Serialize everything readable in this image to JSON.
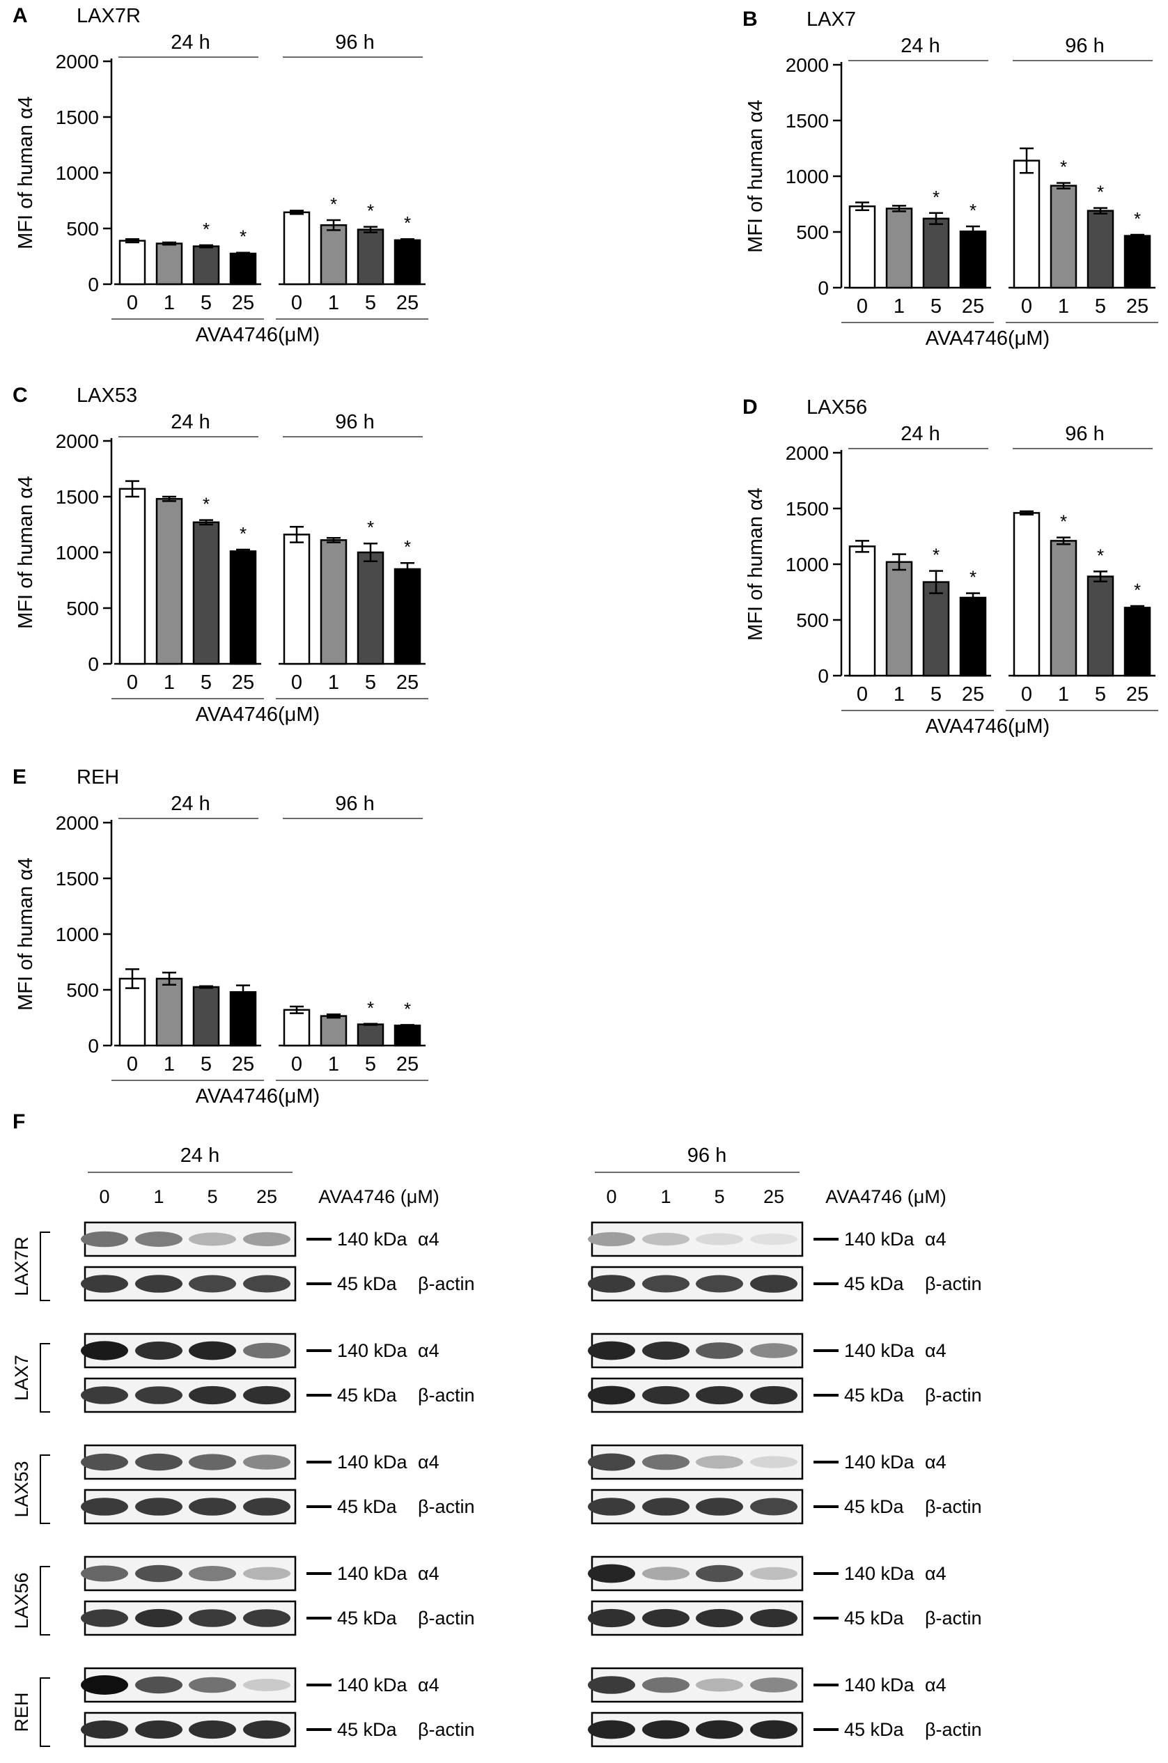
{
  "chart_data": [
    {
      "panel": "A",
      "title": "LAX7R",
      "type": "bar",
      "ylabel": "MFI of human α4",
      "xlabel": "AVA4746(μM)",
      "ylim": [
        0,
        2000
      ],
      "yticks": [
        0,
        500,
        1000,
        1500,
        2000
      ],
      "groups": [
        {
          "label": "24 h",
          "categories": [
            "0",
            "1",
            "5",
            "25"
          ],
          "values": [
            390,
            365,
            340,
            275
          ],
          "errors": [
            15,
            10,
            10,
            8
          ],
          "significant": [
            false,
            false,
            true,
            true
          ]
        },
        {
          "label": "96 h",
          "categories": [
            "0",
            "1",
            "5",
            "25"
          ],
          "values": [
            645,
            530,
            490,
            395
          ],
          "errors": [
            15,
            45,
            25,
            10
          ],
          "significant": [
            false,
            true,
            true,
            true
          ]
        }
      ]
    },
    {
      "panel": "B",
      "title": "LAX7",
      "type": "bar",
      "ylabel": "MFI of human α4",
      "xlabel": "AVA4746(μM)",
      "ylim": [
        0,
        2000
      ],
      "yticks": [
        0,
        500,
        1000,
        1500,
        2000
      ],
      "groups": [
        {
          "label": "24 h",
          "categories": [
            "0",
            "1",
            "5",
            "25"
          ],
          "values": [
            730,
            710,
            620,
            505
          ],
          "errors": [
            35,
            25,
            50,
            45
          ],
          "significant": [
            false,
            false,
            true,
            true
          ]
        },
        {
          "label": "96 h",
          "categories": [
            "0",
            "1",
            "5",
            "25"
          ],
          "values": [
            1140,
            915,
            690,
            465
          ],
          "errors": [
            110,
            25,
            25,
            10
          ],
          "significant": [
            false,
            true,
            true,
            true
          ]
        }
      ]
    },
    {
      "panel": "C",
      "title": "LAX53",
      "type": "bar",
      "ylabel": "MFI of human α4",
      "xlabel": "AVA4746(μM)",
      "ylim": [
        0,
        2000
      ],
      "yticks": [
        0,
        500,
        1000,
        1500,
        2000
      ],
      "groups": [
        {
          "label": "24 h",
          "categories": [
            "0",
            "1",
            "5",
            "25"
          ],
          "values": [
            1570,
            1480,
            1270,
            1010
          ],
          "errors": [
            70,
            20,
            20,
            15
          ],
          "significant": [
            false,
            false,
            true,
            true
          ]
        },
        {
          "label": "96 h",
          "categories": [
            "0",
            "1",
            "5",
            "25"
          ],
          "values": [
            1160,
            1110,
            1000,
            850
          ],
          "errors": [
            70,
            20,
            80,
            55
          ],
          "significant": [
            false,
            false,
            true,
            true
          ]
        }
      ]
    },
    {
      "panel": "D",
      "title": "LAX56",
      "type": "bar",
      "ylabel": "MFI of human α4",
      "xlabel": "AVA4746(μM)",
      "ylim": [
        0,
        2000
      ],
      "yticks": [
        0,
        500,
        1000,
        1500,
        2000
      ],
      "groups": [
        {
          "label": "24 h",
          "categories": [
            "0",
            "1",
            "5",
            "25"
          ],
          "values": [
            1160,
            1020,
            840,
            700
          ],
          "errors": [
            50,
            70,
            100,
            40
          ],
          "significant": [
            false,
            false,
            true,
            true
          ]
        },
        {
          "label": "96 h",
          "categories": [
            "0",
            "1",
            "5",
            "25"
          ],
          "values": [
            1460,
            1210,
            890,
            610
          ],
          "errors": [
            15,
            30,
            45,
            15
          ],
          "significant": [
            false,
            true,
            true,
            true
          ]
        }
      ]
    },
    {
      "panel": "E",
      "title": "REH",
      "type": "bar",
      "ylabel": "MFI of human α4",
      "xlabel": "AVA4746(μM)",
      "ylim": [
        0,
        2000
      ],
      "yticks": [
        0,
        500,
        1000,
        1500,
        2000
      ],
      "groups": [
        {
          "label": "24 h",
          "categories": [
            "0",
            "1",
            "5",
            "25"
          ],
          "values": [
            600,
            600,
            525,
            480
          ],
          "errors": [
            85,
            55,
            8,
            60
          ],
          "significant": [
            false,
            false,
            false,
            false
          ]
        },
        {
          "label": "96 h",
          "categories": [
            "0",
            "1",
            "5",
            "25"
          ],
          "values": [
            320,
            265,
            190,
            180
          ],
          "errors": [
            30,
            15,
            5,
            5
          ],
          "significant": [
            false,
            false,
            true,
            true
          ]
        }
      ]
    }
  ],
  "bar_colors": [
    "#ffffff",
    "#8c8c8c",
    "#4a4a4a",
    "#000000"
  ],
  "star": "*",
  "blot": {
    "panel": "F",
    "groups": [
      "24 h",
      "96 h"
    ],
    "lanes": [
      "0",
      "1",
      "5",
      "25"
    ],
    "treatment_label": "AVA4746 (μM)",
    "band_labels": {
      "a4_kda": "140 kDa",
      "a4_name": "α4",
      "actin_kda": "45 kDa",
      "actin_name": "β-actin"
    },
    "rows": [
      {
        "cell_line": "LAX7R",
        "a4_24": [
          0.55,
          0.5,
          0.25,
          0.35
        ],
        "actin_24": [
          0.8,
          0.8,
          0.75,
          0.75
        ],
        "a4_96": [
          0.35,
          0.2,
          0.08,
          0.05
        ],
        "actin_96": [
          0.8,
          0.75,
          0.75,
          0.8
        ]
      },
      {
        "cell_line": "LAX7",
        "a4_24": [
          0.95,
          0.85,
          0.9,
          0.55
        ],
        "actin_24": [
          0.8,
          0.8,
          0.85,
          0.85
        ],
        "a4_96": [
          0.9,
          0.85,
          0.65,
          0.45
        ],
        "actin_96": [
          0.9,
          0.85,
          0.85,
          0.85
        ]
      },
      {
        "cell_line": "LAX53",
        "a4_24": [
          0.7,
          0.7,
          0.6,
          0.45
        ],
        "actin_24": [
          0.8,
          0.8,
          0.8,
          0.8
        ],
        "a4_96": [
          0.75,
          0.55,
          0.25,
          0.1
        ],
        "actin_96": [
          0.8,
          0.8,
          0.8,
          0.75
        ]
      },
      {
        "cell_line": "LAX56",
        "a4_24": [
          0.6,
          0.7,
          0.5,
          0.25
        ],
        "actin_24": [
          0.8,
          0.85,
          0.8,
          0.8
        ],
        "a4_96": [
          0.9,
          0.3,
          0.7,
          0.2
        ],
        "actin_96": [
          0.85,
          0.85,
          0.85,
          0.85
        ]
      },
      {
        "cell_line": "REH",
        "a4_24": [
          1.0,
          0.7,
          0.55,
          0.15
        ],
        "actin_24": [
          0.85,
          0.85,
          0.85,
          0.85
        ],
        "a4_96": [
          0.8,
          0.55,
          0.25,
          0.45
        ],
        "actin_96": [
          0.9,
          0.9,
          0.9,
          0.9
        ]
      }
    ]
  }
}
